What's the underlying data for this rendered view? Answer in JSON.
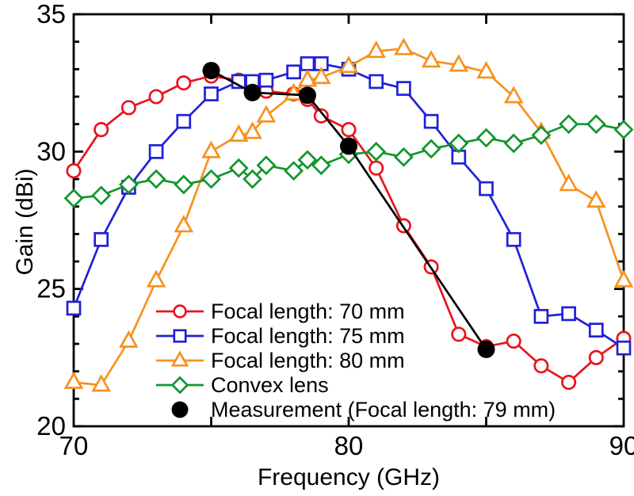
{
  "figure": {
    "xlabel": "Frequency (GHz)",
    "ylabel": "Gain (dBi)"
  },
  "chart_data": {
    "type": "line",
    "title": "",
    "xlabel": "Frequency (GHz)",
    "ylabel": "Gain (dBi)",
    "xlim": [
      70,
      90
    ],
    "ylim": [
      20,
      35
    ],
    "x_major_ticks": [
      70,
      80,
      90
    ],
    "x_mid_ticks": [
      75,
      85
    ],
    "y_major_ticks": [
      20,
      25,
      30,
      35
    ],
    "y_minor_tick_step": 1,
    "grid": false,
    "legend_position": "inside-lower-left",
    "axis_color": "#000000",
    "legend": [
      "Focal length: 70 mm",
      "Focal length: 75 mm",
      "Focal length: 80 mm",
      "Convex lens",
      "Measurement (Focal length: 79 mm)"
    ],
    "series": [
      {
        "name": "Focal length: 70 mm",
        "slug": "focal-70",
        "color": "#e8141e",
        "marker": "circle",
        "filled": false,
        "x": [
          70,
          71,
          72,
          73,
          74,
          75,
          76,
          76.5,
          77,
          78,
          78.5,
          79,
          80,
          81,
          82,
          83,
          84,
          85,
          86,
          87,
          88,
          89,
          90
        ],
        "y": [
          29.3,
          30.8,
          31.6,
          32.0,
          32.5,
          32.75,
          32.6,
          32.45,
          32.2,
          32.1,
          31.9,
          31.3,
          30.8,
          29.4,
          27.3,
          25.8,
          23.35,
          22.9,
          23.1,
          22.2,
          21.6,
          22.5,
          23.2
        ]
      },
      {
        "name": "Focal length: 75 mm",
        "slug": "focal-75",
        "color": "#2020d8",
        "marker": "square",
        "filled": false,
        "x": [
          70,
          71,
          72,
          73,
          74,
          75,
          76,
          76.5,
          77,
          78,
          78.5,
          79,
          80,
          81,
          82,
          83,
          84,
          85,
          86,
          87,
          88,
          89,
          90
        ],
        "y": [
          24.3,
          26.8,
          28.7,
          30.0,
          31.1,
          32.1,
          32.55,
          32.55,
          32.6,
          32.9,
          33.2,
          33.2,
          33.0,
          32.55,
          32.3,
          31.1,
          29.8,
          28.65,
          26.8,
          24.0,
          24.1,
          23.5,
          22.85
        ]
      },
      {
        "name": "Focal length: 80 mm",
        "slug": "focal-80",
        "color": "#f6921e",
        "marker": "triangle",
        "filled": false,
        "x": [
          70,
          71,
          72,
          73,
          74,
          75,
          76,
          76.5,
          77,
          78,
          78.5,
          79,
          80,
          81,
          82,
          83,
          84,
          85,
          86,
          87,
          88,
          89,
          90
        ],
        "y": [
          21.6,
          21.5,
          23.1,
          25.3,
          27.3,
          30.0,
          30.6,
          30.7,
          31.3,
          32.1,
          32.6,
          32.7,
          33.1,
          33.65,
          33.75,
          33.3,
          33.15,
          32.9,
          32.0,
          30.7,
          28.8,
          28.2,
          25.3
        ]
      },
      {
        "name": "Convex lens",
        "slug": "convex-lens",
        "color": "#12962e",
        "marker": "diamond",
        "filled": false,
        "x": [
          70,
          71,
          72,
          73,
          74,
          75,
          76,
          76.5,
          77,
          78,
          78.5,
          79,
          80,
          81,
          82,
          83,
          84,
          85,
          86,
          87,
          88,
          89,
          90
        ],
        "y": [
          28.3,
          28.4,
          28.8,
          29.0,
          28.8,
          29.0,
          29.4,
          29.0,
          29.5,
          29.3,
          29.7,
          29.5,
          29.9,
          30.0,
          29.8,
          30.1,
          30.3,
          30.5,
          30.3,
          30.6,
          31.0,
          31.0,
          30.8
        ]
      },
      {
        "name": "Measurement (Focal length: 79 mm)",
        "slug": "measurement",
        "color": "#000000",
        "marker": "dot",
        "filled": true,
        "x": [
          75,
          76.5,
          78.5,
          80,
          85
        ],
        "y": [
          32.95,
          32.15,
          32.05,
          30.2,
          22.8
        ]
      }
    ]
  }
}
